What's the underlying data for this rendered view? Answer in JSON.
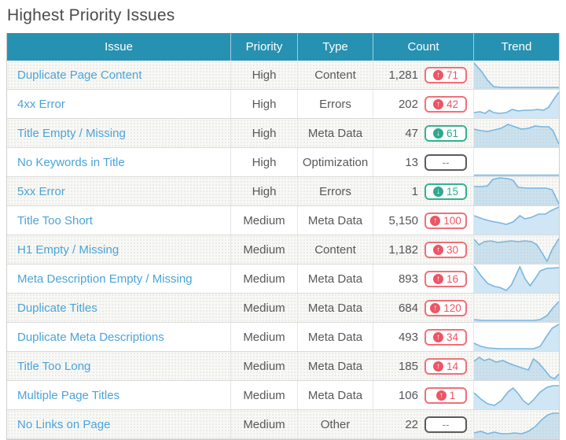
{
  "page_title": "Highest Priority Issues",
  "icons": {
    "up": "↑",
    "down": "↓"
  },
  "colors": {
    "header_bg": "#2791b2",
    "link_blue": "#4ba4d9",
    "increase_red": "#ed5565",
    "decrease_green": "#2fa98e",
    "neutral_gray": "#5b5b5b",
    "spark_line": "#79b6e0",
    "spark_fill": "rgba(121,182,224,0.35)"
  },
  "table": {
    "columns": [
      "Issue",
      "Priority",
      "Type",
      "Count",
      "Trend"
    ],
    "rows": [
      {
        "issue": "Duplicate Page Content",
        "priority": "High",
        "type": "Content",
        "count": "1,281",
        "change": "71",
        "direction": "up",
        "trend": [
          [
            0,
            3
          ],
          [
            9,
            14
          ],
          [
            16,
            25
          ],
          [
            23,
            33
          ],
          [
            32,
            34
          ],
          [
            100,
            34
          ]
        ]
      },
      {
        "issue": "4xx Error",
        "priority": "High",
        "type": "Errors",
        "count": "202",
        "change": "42",
        "direction": "up",
        "trend": [
          [
            0,
            29
          ],
          [
            7,
            28
          ],
          [
            13,
            30
          ],
          [
            18,
            26
          ],
          [
            23,
            29
          ],
          [
            30,
            30
          ],
          [
            38,
            29
          ],
          [
            45,
            25
          ],
          [
            52,
            27
          ],
          [
            60,
            26
          ],
          [
            68,
            26
          ],
          [
            75,
            25
          ],
          [
            82,
            26
          ],
          [
            88,
            22
          ],
          [
            94,
            12
          ],
          [
            100,
            3
          ]
        ]
      },
      {
        "issue": "Title Empty / Missing",
        "priority": "High",
        "type": "Meta Data",
        "count": "47",
        "change": "61",
        "direction": "down",
        "trend": [
          [
            0,
            13
          ],
          [
            8,
            15
          ],
          [
            16,
            16
          ],
          [
            24,
            14
          ],
          [
            32,
            12
          ],
          [
            40,
            7
          ],
          [
            48,
            10
          ],
          [
            56,
            13
          ],
          [
            64,
            12
          ],
          [
            72,
            9
          ],
          [
            80,
            10
          ],
          [
            88,
            10
          ],
          [
            93,
            15
          ],
          [
            100,
            32
          ]
        ]
      },
      {
        "issue": "No Keywords in Title",
        "priority": "High",
        "type": "Optimization",
        "count": "13",
        "change": "--",
        "direction": "none",
        "trend": [
          [
            0,
            34.5
          ],
          [
            100,
            34.5
          ]
        ]
      },
      {
        "issue": "5xx Error",
        "priority": "High",
        "type": "Errors",
        "count": "1",
        "change": "15",
        "direction": "down",
        "trend": [
          [
            0,
            12
          ],
          [
            10,
            12
          ],
          [
            16,
            11
          ],
          [
            22,
            3
          ],
          [
            30,
            1
          ],
          [
            40,
            2
          ],
          [
            46,
            4
          ],
          [
            52,
            13
          ],
          [
            62,
            14
          ],
          [
            75,
            14
          ],
          [
            85,
            14
          ],
          [
            92,
            16
          ],
          [
            100,
            34
          ]
        ]
      },
      {
        "issue": "Title Too Short",
        "priority": "Medium",
        "type": "Meta Data",
        "count": "5,150",
        "change": "100",
        "direction": "up",
        "trend": [
          [
            0,
            12
          ],
          [
            10,
            16
          ],
          [
            20,
            19
          ],
          [
            30,
            21
          ],
          [
            38,
            23
          ],
          [
            46,
            20
          ],
          [
            54,
            12
          ],
          [
            60,
            16
          ],
          [
            68,
            14
          ],
          [
            76,
            10
          ],
          [
            84,
            10
          ],
          [
            90,
            6
          ],
          [
            100,
            1
          ]
        ]
      },
      {
        "issue": "H1 Empty / Missing",
        "priority": "Medium",
        "type": "Content",
        "count": "1,182",
        "change": "30",
        "direction": "up",
        "trend": [
          [
            0,
            5
          ],
          [
            6,
            12
          ],
          [
            12,
            8
          ],
          [
            20,
            7
          ],
          [
            28,
            9
          ],
          [
            36,
            8
          ],
          [
            44,
            7
          ],
          [
            52,
            8
          ],
          [
            60,
            7
          ],
          [
            68,
            8
          ],
          [
            74,
            12
          ],
          [
            80,
            22
          ],
          [
            86,
            33
          ],
          [
            92,
            18
          ],
          [
            100,
            4
          ]
        ]
      },
      {
        "issue": "Meta Description Empty / Missing",
        "priority": "Medium",
        "type": "Meta Data",
        "count": "893",
        "change": "16",
        "direction": "up",
        "trend": [
          [
            0,
            2
          ],
          [
            8,
            14
          ],
          [
            16,
            24
          ],
          [
            24,
            28
          ],
          [
            30,
            29
          ],
          [
            38,
            33
          ],
          [
            44,
            26
          ],
          [
            50,
            12
          ],
          [
            54,
            3
          ],
          [
            60,
            18
          ],
          [
            66,
            27
          ],
          [
            72,
            18
          ],
          [
            78,
            8
          ],
          [
            86,
            5
          ],
          [
            100,
            4
          ]
        ]
      },
      {
        "issue": "Duplicate Titles",
        "priority": "Medium",
        "type": "Meta Data",
        "count": "684",
        "change": "120",
        "direction": "up",
        "trend": [
          [
            0,
            33
          ],
          [
            10,
            34
          ],
          [
            70,
            34
          ],
          [
            78,
            33
          ],
          [
            86,
            28
          ],
          [
            93,
            18
          ],
          [
            100,
            10
          ]
        ]
      },
      {
        "issue": "Duplicate Meta Descriptions",
        "priority": "Medium",
        "type": "Meta Data",
        "count": "493",
        "change": "34",
        "direction": "up",
        "trend": [
          [
            0,
            26
          ],
          [
            8,
            30
          ],
          [
            16,
            32
          ],
          [
            30,
            33
          ],
          [
            55,
            33
          ],
          [
            70,
            33
          ],
          [
            78,
            30
          ],
          [
            85,
            18
          ],
          [
            92,
            7
          ],
          [
            100,
            2
          ]
        ]
      },
      {
        "issue": "Title Too Long",
        "priority": "Medium",
        "type": "Meta Data",
        "count": "185",
        "change": "14",
        "direction": "up",
        "trend": [
          [
            0,
            12
          ],
          [
            6,
            7
          ],
          [
            12,
            11
          ],
          [
            18,
            9
          ],
          [
            26,
            13
          ],
          [
            34,
            11
          ],
          [
            42,
            15
          ],
          [
            50,
            18
          ],
          [
            58,
            21
          ],
          [
            64,
            23
          ],
          [
            70,
            9
          ],
          [
            76,
            14
          ],
          [
            84,
            24
          ],
          [
            90,
            32
          ],
          [
            95,
            34
          ],
          [
            100,
            28
          ]
        ]
      },
      {
        "issue": "Multiple Page Titles",
        "priority": "Medium",
        "type": "Meta Data",
        "count": "106",
        "change": "1",
        "direction": "up",
        "trend": [
          [
            0,
            15
          ],
          [
            8,
            23
          ],
          [
            16,
            29
          ],
          [
            24,
            31
          ],
          [
            32,
            25
          ],
          [
            40,
            14
          ],
          [
            46,
            9
          ],
          [
            52,
            16
          ],
          [
            58,
            25
          ],
          [
            64,
            30
          ],
          [
            70,
            24
          ],
          [
            78,
            14
          ],
          [
            86,
            8
          ],
          [
            93,
            6
          ],
          [
            100,
            6
          ]
        ]
      },
      {
        "issue": "No Links on Page",
        "priority": "Medium",
        "type": "Other",
        "count": "22",
        "change": "--",
        "direction": "none",
        "trend": [
          [
            0,
            29
          ],
          [
            8,
            27
          ],
          [
            16,
            30
          ],
          [
            24,
            28
          ],
          [
            32,
            30
          ],
          [
            40,
            30
          ],
          [
            48,
            29
          ],
          [
            56,
            30
          ],
          [
            64,
            27
          ],
          [
            72,
            21
          ],
          [
            80,
            12
          ],
          [
            87,
            6
          ],
          [
            93,
            4
          ],
          [
            100,
            4
          ]
        ]
      }
    ]
  }
}
